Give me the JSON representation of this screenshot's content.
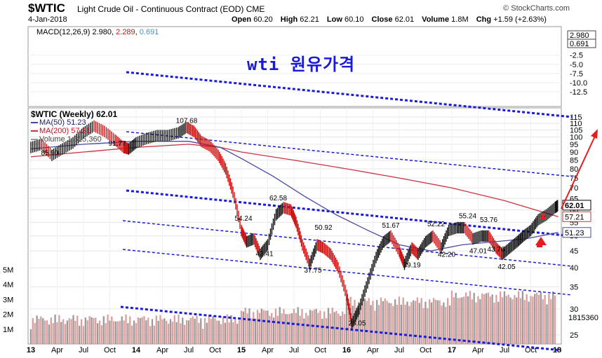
{
  "header": {
    "ticker": "$WTIC",
    "name": "Light Crude Oil - Continuous Contract (EOD) CME",
    "brand": "© StockCharts.com",
    "date": "4-Jan-2018",
    "open_label": "Open",
    "open": "60.20",
    "high_label": "High",
    "high": "62.21",
    "low_label": "Low",
    "low": "60.10",
    "close_label": "Close",
    "close": "62.01",
    "volume_label": "Volume",
    "volume": "1.8M",
    "chg_label": "Chg",
    "chg": "+1.59 (+2.63%)"
  },
  "macd_legend": {
    "label": "MACD(12,26,9)",
    "macd": "2.980",
    "signal": "2.289",
    "hist": "0.691"
  },
  "annotation": "wti 원유가격",
  "legend": {
    "price": "$WTIC (Weekly) 62.01",
    "ma50": "MA(50) 51.23",
    "ma200": "MA(200) 57.21",
    "volume": "Volume 1,815,360"
  },
  "colors": {
    "up": "#111111",
    "down": "#cc1111",
    "ma50": "#4a4aa0",
    "ma200": "#cc3344",
    "channel": "#1a1adb",
    "arrow": "#e81c1c",
    "volume": "#d9a0a0",
    "volume_dark": "#9a9a9a"
  },
  "chart_data": [
    {
      "type": "line",
      "panel": "MACD",
      "title": "MACD(12,26,9)",
      "series": [
        {
          "name": "MACD",
          "last": 2.98
        },
        {
          "name": "Signal",
          "last": 2.289
        },
        {
          "name": "Histogram",
          "last": 0.691
        }
      ],
      "y_ticks": [
        2.98,
        0.691,
        -2.5,
        -5.0,
        -7.5,
        -10.0,
        -12.5
      ],
      "y_tick_labels": [
        "2.980",
        "0.691",
        "-2.5",
        "-5.0",
        "-7.5",
        "-10.0",
        "-12.5"
      ],
      "ylim": [
        -14,
        4
      ]
    },
    {
      "type": "line",
      "panel": "price",
      "title": "$WTIC (Weekly) 62.01",
      "x_tick_labels": [
        "13",
        "Apr",
        "Jul",
        "Oct",
        "14",
        "Apr",
        "Jul",
        "Oct",
        "15",
        "Apr",
        "Jul",
        "Oct",
        "16",
        "Apr",
        "Jul",
        "Oct",
        "17",
        "Apr",
        "Jul",
        "Oct",
        "18"
      ],
      "y_ticks": [
        25,
        30,
        35,
        40,
        45,
        50,
        55,
        60,
        65,
        70,
        75,
        80,
        85,
        90,
        95,
        100,
        105,
        110,
        115
      ],
      "y_tick_labels": [
        "25",
        "30",
        "35",
        "40",
        "45",
        "50",
        "55",
        "60",
        "65",
        "70",
        "75",
        "80",
        "85",
        "90",
        "95",
        "100",
        "105",
        "110",
        "115"
      ],
      "y_scale": "log",
      "ylim": [
        22.5,
        118
      ],
      "y_value_labels": [
        "62.01",
        "57.21",
        "51.23"
      ],
      "y_value_label_values": [
        62.01,
        57.21,
        51.23
      ],
      "series": [
        {
          "name": "$WTIC",
          "points": [
            [
              2013.0,
              93
            ],
            [
              2013.1,
              95
            ],
            [
              2013.2,
              88
            ],
            [
              2013.3,
              92
            ],
            [
              2013.4,
              96
            ],
            [
              2013.5,
              103
            ],
            [
              2013.6,
              108
            ],
            [
              2013.7,
              104
            ],
            [
              2013.8,
              98
            ],
            [
              2013.88,
              93
            ],
            [
              2013.93,
              92
            ],
            [
              2014.0,
              96
            ],
            [
              2014.1,
              99
            ],
            [
              2014.2,
              101
            ],
            [
              2014.3,
              101
            ],
            [
              2014.4,
              103
            ],
            [
              2014.48,
              107
            ],
            [
              2014.55,
              104
            ],
            [
              2014.62,
              97
            ],
            [
              2014.7,
              94
            ],
            [
              2014.78,
              88
            ],
            [
              2014.85,
              80
            ],
            [
              2014.92,
              68
            ],
            [
              2015.0,
              52
            ],
            [
              2015.05,
              48
            ],
            [
              2015.12,
              49
            ],
            [
              2015.18,
              44
            ],
            [
              2015.25,
              47
            ],
            [
              2015.33,
              58
            ],
            [
              2015.4,
              61
            ],
            [
              2015.47,
              60
            ],
            [
              2015.52,
              55
            ],
            [
              2015.58,
              47
            ],
            [
              2015.65,
              41
            ],
            [
              2015.72,
              47
            ],
            [
              2015.78,
              46
            ],
            [
              2015.85,
              44
            ],
            [
              2015.92,
              40
            ],
            [
              2016.0,
              33
            ],
            [
              2016.05,
              27
            ],
            [
              2016.12,
              30
            ],
            [
              2016.2,
              36
            ],
            [
              2016.28,
              43
            ],
            [
              2016.35,
              48
            ],
            [
              2016.42,
              50
            ],
            [
              2016.5,
              45
            ],
            [
              2016.55,
              41
            ],
            [
              2016.62,
              46
            ],
            [
              2016.68,
              44
            ],
            [
              2016.75,
              48
            ],
            [
              2016.82,
              50
            ],
            [
              2016.9,
              46
            ],
            [
              2016.97,
              52
            ],
            [
              2017.05,
              53
            ],
            [
              2017.12,
              53
            ],
            [
              2017.2,
              49
            ],
            [
              2017.28,
              50
            ],
            [
              2017.35,
              50
            ],
            [
              2017.42,
              46
            ],
            [
              2017.48,
              44
            ],
            [
              2017.55,
              46
            ],
            [
              2017.62,
              48
            ],
            [
              2017.68,
              50
            ],
            [
              2017.75,
              52
            ],
            [
              2017.82,
              56
            ],
            [
              2017.9,
              58
            ],
            [
              2017.98,
              61
            ],
            [
              2018.01,
              62.01
            ]
          ]
        },
        {
          "name": "MA(50)",
          "last": 51.23,
          "points": [
            [
              2013.0,
              92
            ],
            [
              2013.5,
              95
            ],
            [
              2014.0,
              97
            ],
            [
              2014.5,
              97
            ],
            [
              2014.8,
              93
            ],
            [
              2015.0,
              86
            ],
            [
              2015.3,
              76
            ],
            [
              2015.6,
              66
            ],
            [
              2015.9,
              58
            ],
            [
              2016.2,
              52
            ],
            [
              2016.5,
              47
            ],
            [
              2016.8,
              45
            ],
            [
              2017.1,
              47
            ],
            [
              2017.4,
              48
            ],
            [
              2017.7,
              49
            ],
            [
              2018.01,
              51.23
            ]
          ]
        },
        {
          "name": "MA(200)",
          "last": 57.21,
          "points": [
            [
              2013.0,
              87
            ],
            [
              2013.5,
              90
            ],
            [
              2014.0,
              93
            ],
            [
              2014.5,
              95
            ],
            [
              2014.8,
              93
            ],
            [
              2015.0,
              90
            ],
            [
              2015.5,
              85
            ],
            [
              2016.0,
              80
            ],
            [
              2016.5,
              75
            ],
            [
              2017.0,
              70
            ],
            [
              2017.5,
              64
            ],
            [
              2018.01,
              57.21
            ]
          ]
        }
      ],
      "price_labels": [
        {
          "text": "85.90",
          "x": 2013.18,
          "y": 85.9
        },
        {
          "text": "91.77",
          "x": 2013.82,
          "y": 91.77
        },
        {
          "text": "107.68",
          "x": 2014.48,
          "y": 107.68
        },
        {
          "text": "54.24",
          "x": 2015.02,
          "y": 54.24
        },
        {
          "text": "42.41",
          "x": 2015.22,
          "y": 42.41
        },
        {
          "text": "62.58",
          "x": 2015.35,
          "y": 62.58
        },
        {
          "text": "37.75",
          "x": 2015.68,
          "y": 37.75
        },
        {
          "text": "50.92",
          "x": 2015.78,
          "y": 50.92
        },
        {
          "text": "26.05",
          "x": 2016.1,
          "y": 26.05
        },
        {
          "text": "51.67",
          "x": 2016.42,
          "y": 51.67
        },
        {
          "text": "39.19",
          "x": 2016.62,
          "y": 39.19
        },
        {
          "text": "52.22",
          "x": 2016.85,
          "y": 52.22
        },
        {
          "text": "42.20",
          "x": 2016.95,
          "y": 42.2
        },
        {
          "text": "55.24",
          "x": 2017.15,
          "y": 55.24
        },
        {
          "text": "53.76",
          "x": 2017.35,
          "y": 53.76
        },
        {
          "text": "47.01",
          "x": 2017.25,
          "y": 47.01
        },
        {
          "text": "43.76",
          "x": 2017.42,
          "y": 43.76
        },
        {
          "text": "42.05",
          "x": 2017.52,
          "y": 42.05
        }
      ]
    },
    {
      "type": "bar",
      "panel": "volume",
      "title": "Volume 1,815,360",
      "y_ticks": [
        1,
        2,
        3,
        4,
        5
      ],
      "y_tick_labels": [
        "1M",
        "2M",
        "3M",
        "4M",
        "5M"
      ],
      "ylim": [
        0,
        6
      ],
      "last_label": "1815360",
      "last": 1815360
    }
  ]
}
